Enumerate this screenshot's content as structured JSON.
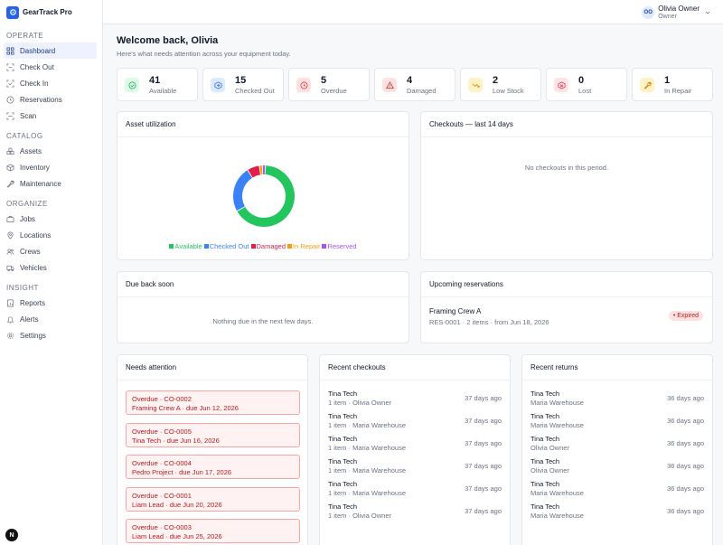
{
  "app": {
    "name": "GearTrack Pro"
  },
  "user": {
    "initials": "OO",
    "name": "Olivia Owner",
    "role": "Owner"
  },
  "sidebar": {
    "sections": [
      {
        "title": "OPERATE",
        "items": [
          {
            "label": "Dashboard",
            "icon": "grid-icon",
            "active": true
          },
          {
            "label": "Check Out",
            "icon": "scan-out-icon"
          },
          {
            "label": "Check In",
            "icon": "check-in-icon"
          },
          {
            "label": "Reservations",
            "icon": "clock-icon"
          },
          {
            "label": "Scan",
            "icon": "scan-icon"
          }
        ]
      },
      {
        "title": "CATALOG",
        "items": [
          {
            "label": "Assets",
            "icon": "boxes-icon"
          },
          {
            "label": "Inventory",
            "icon": "package-icon"
          },
          {
            "label": "Maintenance",
            "icon": "wrench-icon"
          }
        ]
      },
      {
        "title": "ORGANIZE",
        "items": [
          {
            "label": "Jobs",
            "icon": "briefcase-icon"
          },
          {
            "label": "Locations",
            "icon": "pin-icon"
          },
          {
            "label": "Crews",
            "icon": "users-icon"
          },
          {
            "label": "Vehicles",
            "icon": "truck-icon"
          }
        ]
      },
      {
        "title": "INSIGHT",
        "items": [
          {
            "label": "Reports",
            "icon": "report-icon"
          },
          {
            "label": "Alerts",
            "icon": "bell-icon"
          },
          {
            "label": "Settings",
            "icon": "gear-icon"
          }
        ]
      }
    ],
    "badge": "N"
  },
  "main": {
    "welcome": "Welcome back, Olivia",
    "subtitle": "Here's what needs attention across your equipment today."
  },
  "stats": [
    {
      "value": "41",
      "label": "Available",
      "color": "#16a34a",
      "bg": "#dcfce7"
    },
    {
      "value": "15",
      "label": "Checked Out",
      "color": "#2563eb",
      "bg": "#dbeafe"
    },
    {
      "value": "5",
      "label": "Overdue",
      "color": "#dc2626",
      "bg": "#fee2e2"
    },
    {
      "value": "4",
      "label": "Damaged",
      "color": "#dc2626",
      "bg": "#fee2e2"
    },
    {
      "value": "2",
      "label": "Low Stock",
      "color": "#d97706",
      "bg": "#fef3c7"
    },
    {
      "value": "0",
      "label": "Lost",
      "color": "#e11d48",
      "bg": "#ffe4e6"
    },
    {
      "value": "1",
      "label": "In Repair",
      "color": "#d97706",
      "bg": "#fef3c7"
    }
  ],
  "utilization": {
    "title": "Asset utilization",
    "chart_data": {
      "type": "pie",
      "labels": [
        "Available",
        "Checked Out",
        "Damaged",
        "In Repair",
        "Reserved"
      ],
      "values": [
        41,
        15,
        4,
        1,
        1
      ],
      "colors": [
        "#22c55e",
        "#3b82f6",
        "#e11d48",
        "#f59e0b",
        "#a855f7"
      ],
      "legend": "bottom"
    }
  },
  "checkouts14": {
    "title": "Checkouts — last 14 days",
    "empty": "No checkouts in this period."
  },
  "dueBack": {
    "title": "Due back soon",
    "empty": "Nothing due in the next few days."
  },
  "reservations": {
    "title": "Upcoming reservations",
    "items": [
      {
        "name": "Framing Crew A",
        "meta": "RES-0001 · 2 items · from Jun 18, 2026",
        "status": "Expired"
      }
    ]
  },
  "attention": {
    "title": "Needs attention",
    "items": [
      {
        "title": "Overdue · CO-0002",
        "sub": "Framing Crew A · due Jun 12, 2026"
      },
      {
        "title": "Overdue · CO-0005",
        "sub": "Tina Tech · due Jun 16, 2026"
      },
      {
        "title": "Overdue · CO-0004",
        "sub": "Pedro Project · due Jun 17, 2026"
      },
      {
        "title": "Overdue · CO-0001",
        "sub": "Liam Lead · due Jun 20, 2026"
      },
      {
        "title": "Overdue · CO-0003",
        "sub": "Liam Lead · due Jun 25, 2026"
      }
    ]
  },
  "recentCheckouts": {
    "title": "Recent checkouts",
    "items": [
      {
        "name": "Tina Tech",
        "meta": "1 item · Olivia Owner",
        "time": "37 days ago"
      },
      {
        "name": "Tina Tech",
        "meta": "1 item · Maria Warehouse",
        "time": "37 days ago"
      },
      {
        "name": "Tina Tech",
        "meta": "1 item · Maria Warehouse",
        "time": "37 days ago"
      },
      {
        "name": "Tina Tech",
        "meta": "1 item · Maria Warehouse",
        "time": "37 days ago"
      },
      {
        "name": "Tina Tech",
        "meta": "1 item · Maria Warehouse",
        "time": "37 days ago"
      },
      {
        "name": "Tina Tech",
        "meta": "1 item · Olivia Owner",
        "time": "37 days ago"
      }
    ]
  },
  "recentReturns": {
    "title": "Recent returns",
    "items": [
      {
        "name": "Tina Tech",
        "meta": "Maria Warehouse",
        "time": "36 days ago"
      },
      {
        "name": "Tina Tech",
        "meta": "Maria Warehouse",
        "time": "36 days ago"
      },
      {
        "name": "Tina Tech",
        "meta": "Olivia Owner",
        "time": "36 days ago"
      },
      {
        "name": "Tina Tech",
        "meta": "Olivia Owner",
        "time": "36 days ago"
      },
      {
        "name": "Tina Tech",
        "meta": "Maria Warehouse",
        "time": "36 days ago"
      },
      {
        "name": "Tina Tech",
        "meta": "Maria Warehouse",
        "time": "36 days ago"
      }
    ]
  }
}
